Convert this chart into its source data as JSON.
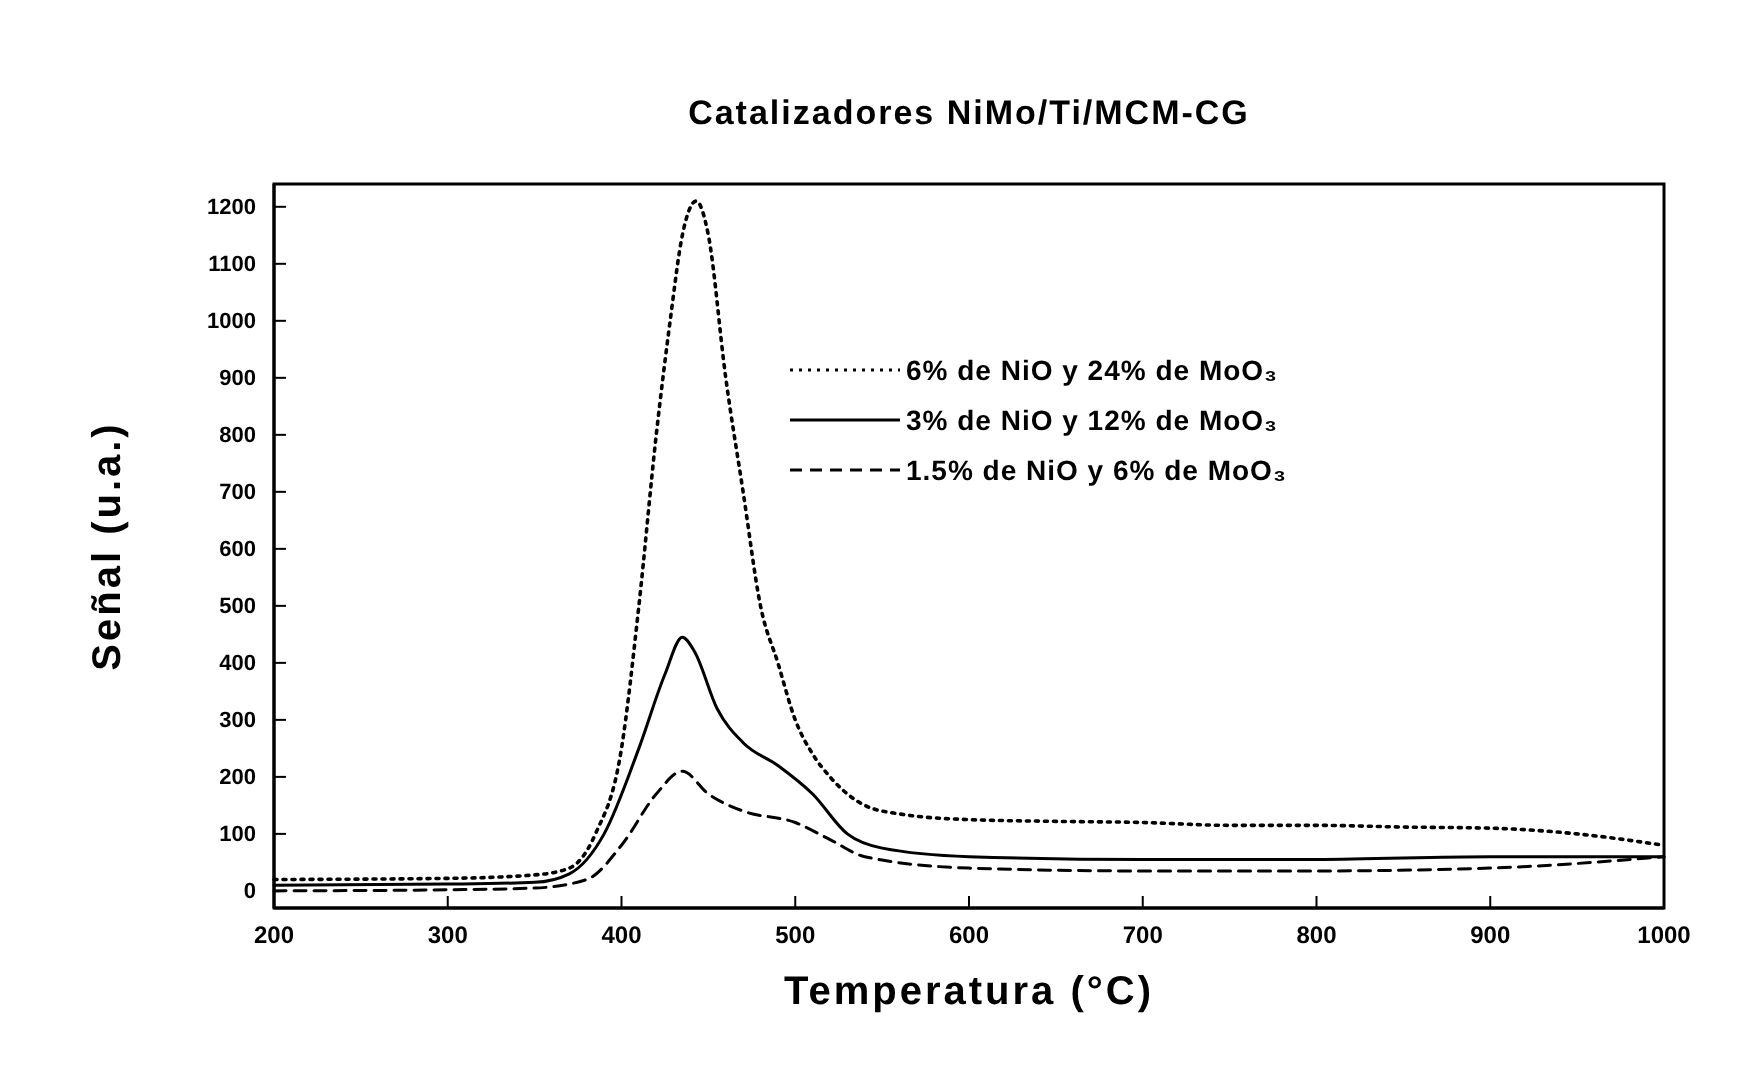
{
  "chart_data": {
    "type": "line",
    "title": "Catalizadores NiMo/Ti/MCM-CG",
    "xlabel": "Temperatura (°C)",
    "ylabel": "Señal (u.a.)",
    "xlim": [
      200,
      1000
    ],
    "xticks": [
      200,
      300,
      400,
      500,
      600,
      700,
      800,
      900,
      1000
    ],
    "ylim": [
      -30,
      1240
    ],
    "yticks": [
      0,
      100,
      200,
      300,
      400,
      500,
      600,
      700,
      800,
      900,
      1000,
      1100,
      1200
    ],
    "legend": "top right",
    "grid": false,
    "marker": "none",
    "series": [
      {
        "name": "6% de NiO y 24% de MoO₃",
        "color": "#000000",
        "line_style": "dotted",
        "x": [
          200,
          300,
          350,
          370,
          385,
          400,
          410,
          420,
          428,
          435,
          443,
          450,
          460,
          470,
          480,
          490,
          500,
          510,
          520,
          540,
          560,
          600,
          650,
          700,
          750,
          800,
          850,
          900,
          950,
          1000
        ],
        "values": [
          20,
          22,
          28,
          40,
          100,
          250,
          500,
          800,
          1000,
          1150,
          1210,
          1150,
          900,
          700,
          500,
          400,
          300,
          240,
          200,
          150,
          135,
          125,
          122,
          120,
          115,
          115,
          112,
          110,
          100,
          80
        ]
      },
      {
        "name": "3% de NiO y 12% de MoO₃",
        "color": "#000000",
        "line_style": "solid",
        "x": [
          200,
          300,
          350,
          370,
          390,
          410,
          425,
          435,
          442,
          455,
          470,
          490,
          510,
          530,
          550,
          600,
          700,
          800,
          900,
          1000
        ],
        "values": [
          10,
          12,
          15,
          30,
          100,
          250,
          380,
          445,
          420,
          320,
          260,
          220,
          170,
          100,
          75,
          60,
          55,
          55,
          60,
          60
        ]
      },
      {
        "name": "1.5% de NiO y 6% de MoO₃",
        "color": "#000000",
        "line_style": "dashed",
        "x": [
          200,
          300,
          350,
          380,
          400,
          420,
          435,
          450,
          470,
          500,
          520,
          540,
          600,
          700,
          800,
          900,
          1000
        ],
        "values": [
          0,
          2,
          5,
          20,
          80,
          170,
          210,
          170,
          140,
          120,
          90,
          60,
          40,
          35,
          35,
          40,
          60
        ]
      }
    ]
  }
}
